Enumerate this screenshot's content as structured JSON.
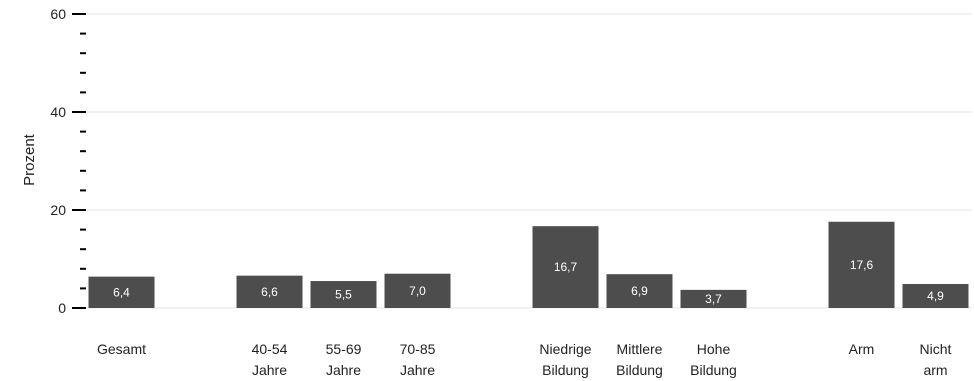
{
  "chart_data": {
    "type": "bar",
    "title": "",
    "xlabel": "",
    "ylabel": "Prozent",
    "ylim": [
      0,
      60
    ],
    "y_ticks": [
      "0",
      "20",
      "40",
      "60"
    ],
    "grid": "horizontal",
    "bar_color": "#4d4d4d",
    "grid_color": "#e6e6e6",
    "categories": [
      [
        "Gesamt"
      ],
      [
        "40-54",
        "Jahre"
      ],
      [
        "55-69",
        "Jahre"
      ],
      [
        "70-85",
        "Jahre"
      ],
      [
        "Niedrige",
        "Bildung"
      ],
      [
        "Mittlere",
        "Bildung"
      ],
      [
        "Hohe",
        "Bildung"
      ],
      [
        "Arm"
      ],
      [
        "Nicht",
        "arm"
      ]
    ],
    "values": [
      6.4,
      6.6,
      5.5,
      7.0,
      16.7,
      6.9,
      3.7,
      17.6,
      4.9
    ],
    "value_labels": [
      "6,4",
      "6,6",
      "5,5",
      "7,0",
      "16,7",
      "6,9",
      "3,7",
      "17,6",
      "4,9"
    ]
  }
}
